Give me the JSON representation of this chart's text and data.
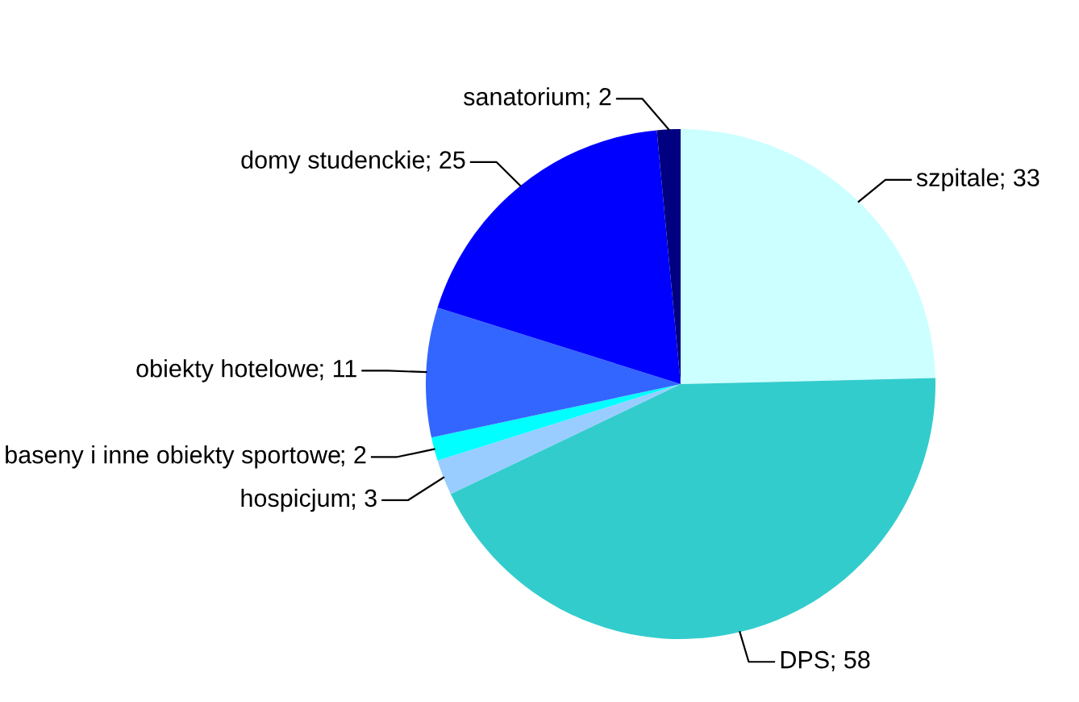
{
  "chart_data": {
    "type": "pie",
    "categories": [
      "szpitale",
      "DPS",
      "hospicjum",
      "baseny i inne obiekty sportowe",
      "obiekty hotelowe",
      "domy studenckie",
      "sanatorium"
    ],
    "values": [
      33,
      58,
      3,
      2,
      11,
      25,
      2
    ],
    "colors": [
      "#ccffff",
      "#33cccc",
      "#99ccff",
      "#00ffff",
      "#3366ff",
      "#0000ff",
      "#000080"
    ],
    "value_labels": [
      "; 33",
      "; 58",
      "; 3",
      "; 2",
      "; 11",
      "; 25",
      "; 2"
    ],
    "legend": false
  }
}
